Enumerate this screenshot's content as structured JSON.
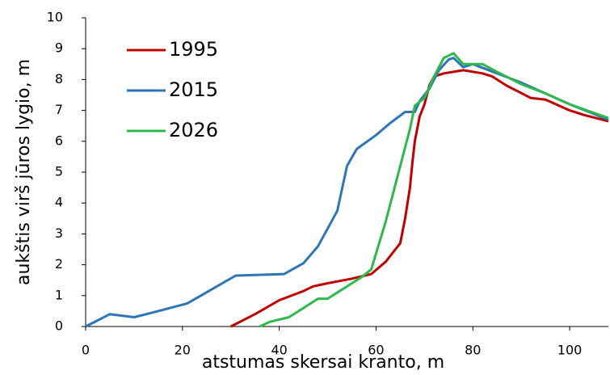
{
  "chart_data": {
    "type": "line",
    "xlabel": "atstumas skersai kranto, m",
    "ylabel": "aukštis virš jūros lygio, m",
    "xlim": [
      0,
      108
    ],
    "xticks": [
      0,
      20,
      40,
      60,
      80,
      100
    ],
    "ylim": [
      0,
      10
    ],
    "yticks": [
      0,
      1,
      2,
      3,
      4,
      5,
      6,
      7,
      8,
      9,
      10
    ],
    "legend": "upper left",
    "series": [
      {
        "name": "1995",
        "color": "#c00000",
        "x": [
          30,
          35,
          40,
          45,
          47,
          50,
          55,
          59,
          62,
          65,
          66,
          67,
          67.5,
          68,
          69,
          70,
          71,
          72,
          74,
          78,
          82,
          84,
          87,
          92,
          95,
          100,
          103,
          108
        ],
        "values": [
          0,
          0.4,
          0.85,
          1.15,
          1.3,
          1.4,
          1.55,
          1.7,
          2.1,
          2.7,
          3.5,
          4.5,
          5.3,
          6,
          6.8,
          7.2,
          7.8,
          8.1,
          8.2,
          8.3,
          8.2,
          8.1,
          7.8,
          7.4,
          7.35,
          7,
          6.85,
          6.65
        ]
      },
      {
        "name": "2015",
        "color": "#2e75b6",
        "x": [
          0,
          5,
          10,
          15,
          21,
          26,
          31,
          41,
          45,
          48,
          52,
          54,
          56,
          60,
          63,
          66,
          68,
          69,
          71,
          73,
          75,
          76,
          78,
          80,
          85,
          90,
          95,
          100,
          108
        ],
        "values": [
          0,
          0.4,
          0.3,
          0.5,
          0.75,
          1.2,
          1.65,
          1.7,
          2.05,
          2.6,
          3.75,
          5.2,
          5.75,
          6.2,
          6.6,
          6.95,
          6.95,
          7.3,
          7.7,
          8.3,
          8.65,
          8.7,
          8.4,
          8.5,
          8.2,
          7.9,
          7.55,
          7.2,
          6.7
        ]
      },
      {
        "name": "2026",
        "color": "#2fb84c",
        "x": [
          36,
          38,
          42,
          45,
          48,
          50,
          53,
          57,
          59,
          62,
          65,
          67,
          68,
          70,
          72,
          74,
          76,
          78,
          82,
          85,
          90,
          95,
          100,
          108
        ],
        "values": [
          0,
          0.15,
          0.3,
          0.6,
          0.9,
          0.9,
          1.2,
          1.6,
          1.85,
          3.4,
          5.2,
          6.4,
          7.15,
          7.4,
          8.1,
          8.7,
          8.85,
          8.5,
          8.5,
          8.25,
          7.85,
          7.55,
          7.2,
          6.75
        ]
      }
    ]
  }
}
